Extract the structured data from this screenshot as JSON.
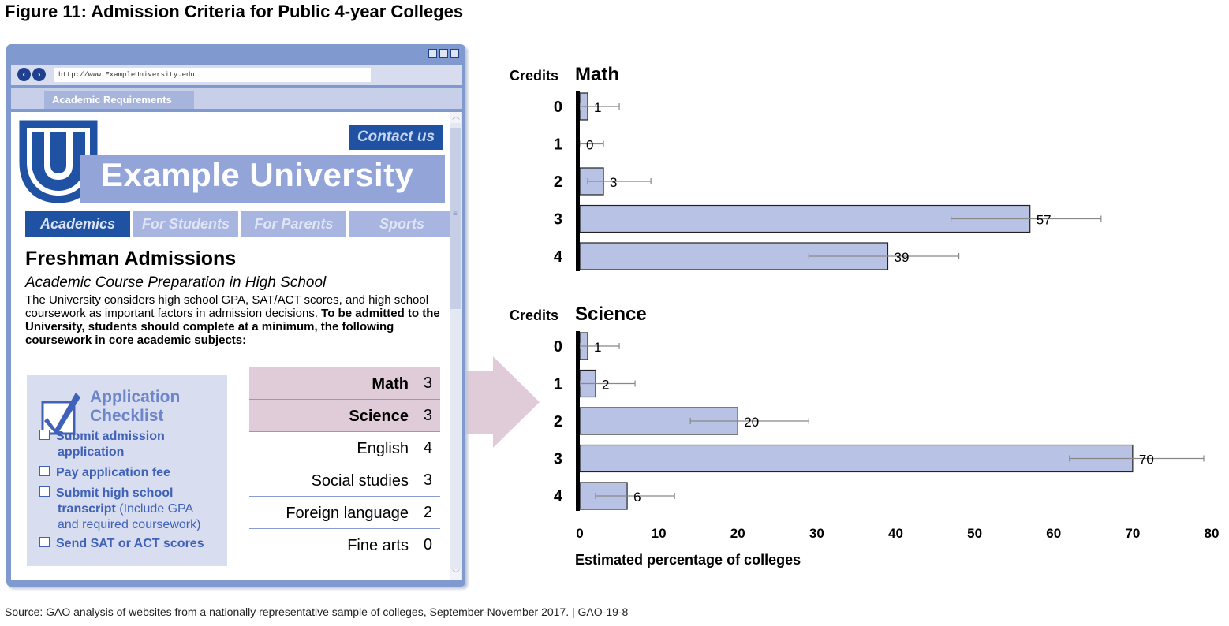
{
  "figure_title": "Figure 11: Admission Criteria for Public 4-year Colleges",
  "source_note": "Source: GAO analysis of websites from a nationally representative sample of colleges, September-November 2017.  |  GAO-19-8",
  "browser": {
    "url": "http://www.ExampleUniversity.edu",
    "tab_label": "Academic Requirements",
    "back_icon": "back-arrow-icon",
    "forward_icon": "forward-arrow-icon"
  },
  "site": {
    "logo_letter": "U",
    "contact_label": "Contact us",
    "university_name": "Example University",
    "menu": [
      {
        "label": "Academics",
        "active": true
      },
      {
        "label": "For Students",
        "active": false
      },
      {
        "label": "For Parents",
        "active": false
      },
      {
        "label": "Sports",
        "active": false
      }
    ],
    "heading": "Freshman Admissions",
    "subheading": "Academic Course Preparation in High School",
    "paragraph": "The University considers high school GPA, SAT/ACT scores, and high school coursework as important factors in admission decisions.",
    "paragraph_bold": "To be admitted to the University, students should complete at a minimum, the following coursework in core academic subjects:"
  },
  "checklist": {
    "title_line1": "Application",
    "title_line2": "Checklist",
    "items": [
      {
        "line1": "Submit admission",
        "line2": "application"
      },
      {
        "line1": "Pay application fee"
      },
      {
        "line1": "Submit high school",
        "line2_bold": "transcript",
        "line2_rest": " (Include GPA",
        "line3": "and required coursework)"
      },
      {
        "line1": "Send SAT or ACT scores"
      }
    ]
  },
  "requirements": [
    {
      "subject": "Math",
      "credits": "3",
      "highlight": true
    },
    {
      "subject": "Science",
      "credits": "3",
      "highlight": true
    },
    {
      "subject": "English",
      "credits": "4",
      "highlight": false
    },
    {
      "subject": "Social studies",
      "credits": "3",
      "highlight": false
    },
    {
      "subject": "Foreign language",
      "credits": "2",
      "highlight": false
    },
    {
      "subject": "Fine arts",
      "credits": "0",
      "highlight": false
    }
  ],
  "colors": {
    "bar_fill": "#b7c2e4",
    "bar_stroke": "#222222",
    "error_bar": "#888888",
    "accent_blue": "#1f52a3",
    "highlight": "#e0cbd8"
  },
  "chart_data": {
    "type": "bar",
    "orientation": "horizontal",
    "xlabel": "Estimated percentage of colleges",
    "xlim": [
      0,
      80
    ],
    "xticks": [
      0,
      10,
      20,
      30,
      40,
      50,
      60,
      70,
      80
    ],
    "category_label": "Credits",
    "panels": [
      {
        "title": "Math",
        "categories": [
          "0",
          "1",
          "2",
          "3",
          "4"
        ],
        "values": [
          1,
          0,
          3,
          57,
          39
        ],
        "error_low": [
          0,
          0,
          1,
          47,
          29
        ],
        "error_high": [
          5,
          3,
          9,
          66,
          48
        ]
      },
      {
        "title": "Science",
        "categories": [
          "0",
          "1",
          "2",
          "3",
          "4"
        ],
        "values": [
          1,
          2,
          20,
          70,
          6
        ],
        "error_low": [
          0,
          0,
          14,
          62,
          2
        ],
        "error_high": [
          5,
          7,
          29,
          79,
          12
        ]
      }
    ]
  }
}
